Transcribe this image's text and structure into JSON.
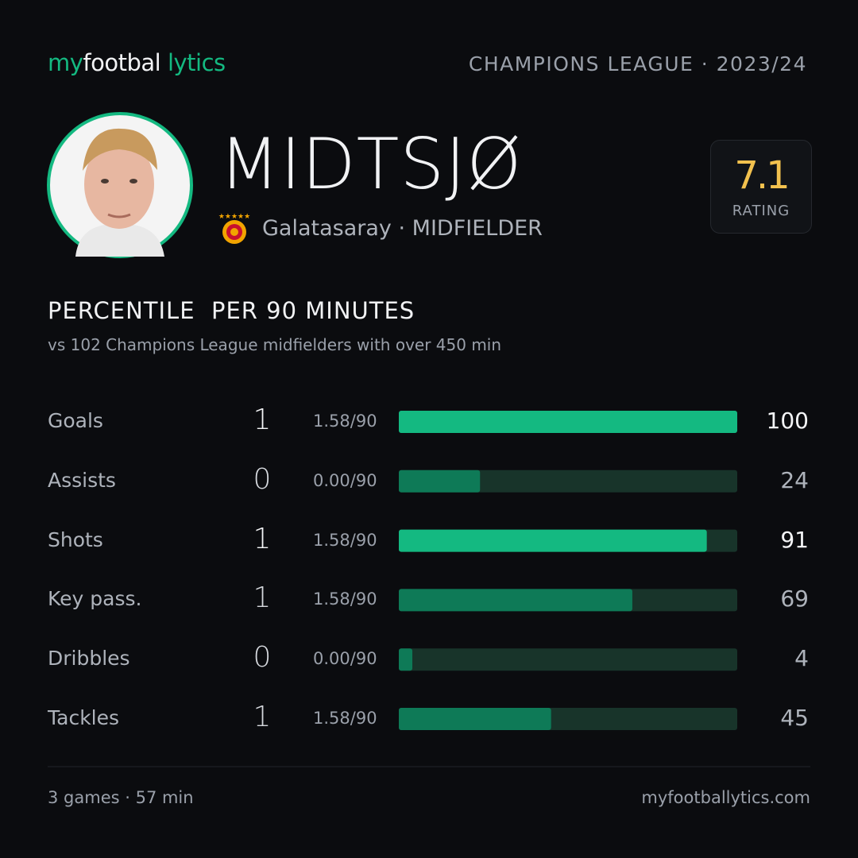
{
  "brand": [
    "my",
    "footbal",
    "lytics"
  ],
  "competition": "CHAMPIONS LEAGUE · 2023/24",
  "player": {
    "name": "MIDTSJØ",
    "club": "Galatasaray",
    "separator": "·",
    "position": "MIDFIELDER"
  },
  "rating": {
    "value": 7.1,
    "label": "RATING"
  },
  "section": {
    "title": "PERCENTILE  PER 90 MINUTES",
    "subtitle": "vs 102 Champions League midfielders with over 450 min"
  },
  "xlim": [
    0,
    100
  ],
  "rows": [
    {
      "label": "Goals",
      "total": 1,
      "per90": "1.58/90",
      "percentile": 100,
      "color": "#14b981",
      "highlight": true
    },
    {
      "label": "Assists",
      "total": 0,
      "per90": "0.00/90",
      "percentile": 24,
      "color": "#0e7a57",
      "highlight": false
    },
    {
      "label": "Shots",
      "total": 1,
      "per90": "1.58/90",
      "percentile": 91,
      "color": "#14b981",
      "highlight": true
    },
    {
      "label": "Key pass.",
      "total": 1,
      "per90": "1.58/90",
      "percentile": 69,
      "color": "#0e7a57",
      "highlight": false
    },
    {
      "label": "Dribbles",
      "total": 0,
      "per90": "0.00/90",
      "percentile": 4,
      "color": "#0e7a57",
      "highlight": false
    },
    {
      "label": "Tackles",
      "total": 1,
      "per90": "1.58/90",
      "percentile": 45,
      "color": "#0e7a57",
      "highlight": false
    }
  ],
  "footer": {
    "left": "3 games · 57 min",
    "right": "myfootballytics.com"
  }
}
